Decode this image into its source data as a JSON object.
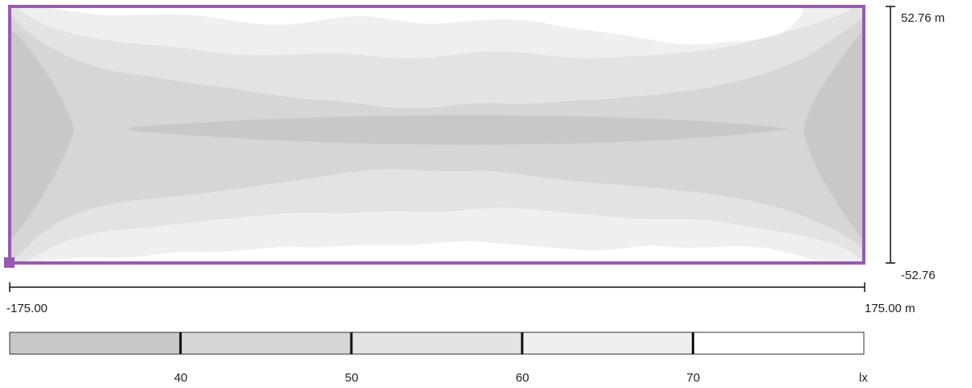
{
  "chart_data": {
    "type": "heatmap",
    "title": "",
    "x_range": [
      -175.0,
      175.0
    ],
    "y_range": [
      -52.76,
      52.76
    ],
    "x_min_label": "-175.00",
    "x_max_label": "175.00 m",
    "y_min_label": "-52.76",
    "y_max_label": "52.76 m",
    "unit": "lx",
    "unit_label": "lx",
    "legend_ticks": [
      40,
      50,
      60,
      70
    ],
    "legend_tick_labels": [
      "40",
      "50",
      "60",
      "70"
    ],
    "levels": [
      {
        "range": "< 40",
        "color": "#c8c8c8"
      },
      {
        "range": "40 - 50",
        "color": "#d6d6d6"
      },
      {
        "range": "50 - 60",
        "color": "#e3e3e3"
      },
      {
        "range": "60 - 70",
        "color": "#efefef"
      },
      {
        "range": "> 70",
        "color": "#ffffff"
      }
    ],
    "boundary_color": "#9b59b6"
  }
}
